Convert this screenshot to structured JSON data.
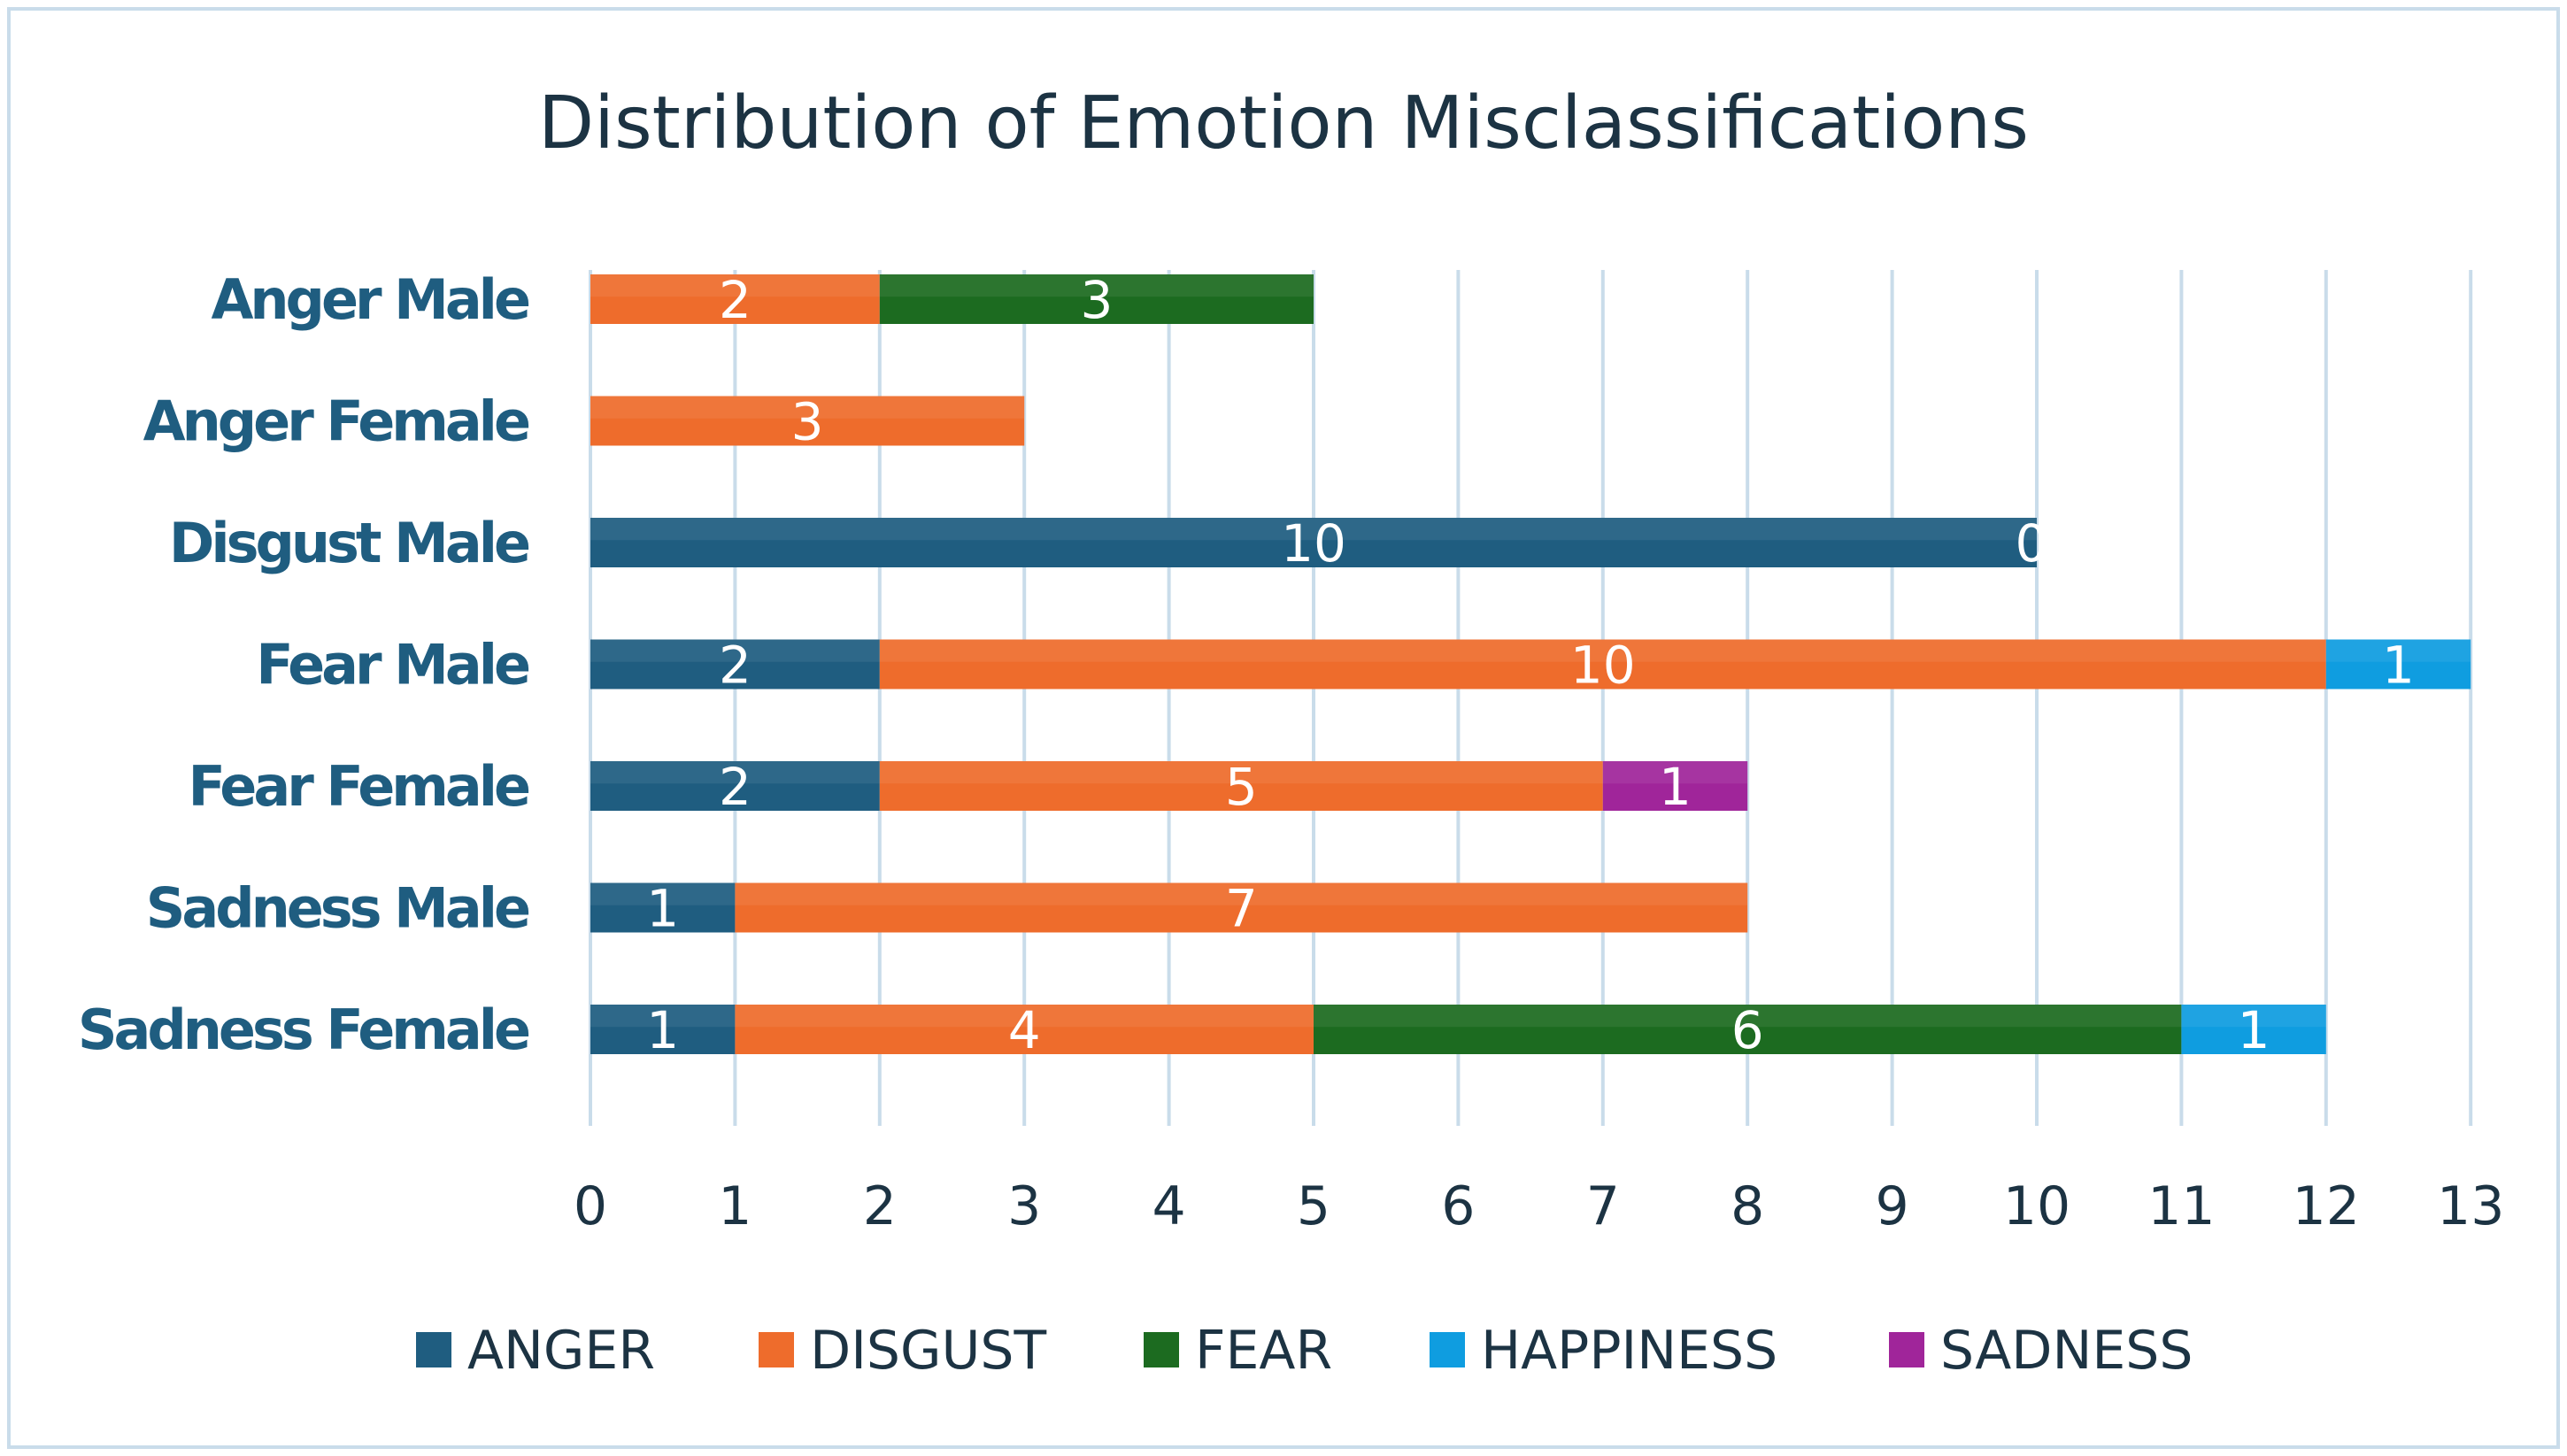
{
  "chart_data": {
    "type": "bar",
    "orientation": "horizontal",
    "stacked": true,
    "title": "Distribution of Emotion Misclassifications",
    "xlabel": "",
    "ylabel": "",
    "xlim": [
      0,
      13
    ],
    "x_ticks": [
      0,
      1,
      2,
      3,
      4,
      5,
      6,
      7,
      8,
      9,
      10,
      11,
      12,
      13
    ],
    "grid": true,
    "legend_position": "bottom",
    "categories": [
      "Anger Male",
      "Anger Female",
      "Disgust Male",
      "Fear Male",
      "Fear Female",
      "Sadness Male",
      "Sadness Female"
    ],
    "series": [
      {
        "name": "ANGER",
        "color": "#1f5d80",
        "values": [
          null,
          null,
          10,
          2,
          2,
          1,
          1
        ]
      },
      {
        "name": "DISGUST",
        "color": "#ee6c2c",
        "values": [
          2,
          3,
          0,
          10,
          5,
          7,
          4
        ]
      },
      {
        "name": "FEAR",
        "color": "#1c6b20",
        "values": [
          3,
          null,
          null,
          null,
          null,
          null,
          6
        ]
      },
      {
        "name": "HAPPINESS",
        "color": "#0f9de0",
        "values": [
          null,
          null,
          null,
          1,
          null,
          null,
          1
        ]
      },
      {
        "name": "SADNESS",
        "color": "#a0259a",
        "values": [
          null,
          null,
          null,
          null,
          1,
          null,
          null
        ]
      }
    ]
  }
}
